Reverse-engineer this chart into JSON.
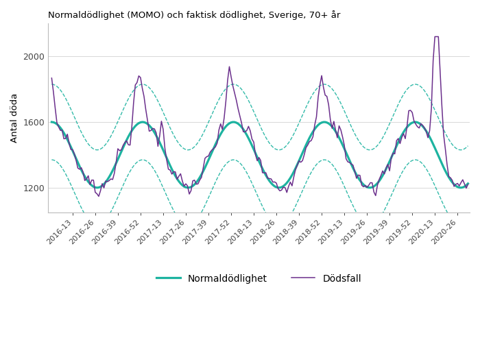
{
  "title": "Normaldödlighet (MOMO) och faktisk dödlighet, Sverige, 70+ år",
  "ylabel": "Antal döda",
  "ylim": [
    1050,
    2200
  ],
  "yticks": [
    1200,
    1600,
    2000
  ],
  "legend_labels": [
    "Normaldödlighet",
    "Dödsfall"
  ],
  "normal_color": "#1db3a0",
  "actual_color": "#6b2f8c",
  "ci_color": "#1db3a0",
  "background_color": "#ffffff",
  "tick_labels": [
    "2016-13",
    "2016-26",
    "2016-39",
    "2016-52",
    "2017-13",
    "2017-26",
    "2017-39",
    "2017-52",
    "2018-13",
    "2018-26",
    "2018-39",
    "2018-52",
    "2019-13",
    "2019-26",
    "2019-39",
    "2019-52",
    "2020-13",
    "2020-26"
  ],
  "tick_positions": [
    12,
    25,
    38,
    51,
    64,
    77,
    90,
    103,
    116,
    129,
    142,
    155,
    168,
    181,
    194,
    207,
    220,
    233
  ]
}
